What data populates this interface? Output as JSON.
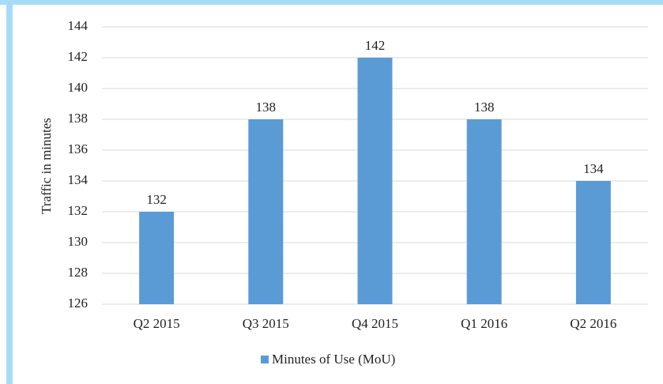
{
  "chart_data": {
    "type": "bar",
    "y_label": "Traffic in minutes",
    "categories": [
      "Q2 2015",
      "Q3 2015",
      "Q4 2015",
      "Q1 2016",
      "Q2 2016"
    ],
    "series": [
      {
        "name": "Minutes of Use (MoU)",
        "color": "#5b9bd5",
        "values": [
          132,
          138,
          142,
          138,
          134
        ]
      }
    ],
    "ylim": [
      126,
      144
    ],
    "yticks": [
      126,
      128,
      130,
      132,
      134,
      136,
      138,
      140,
      142,
      144
    ],
    "grid": true,
    "legend": "bottom"
  }
}
